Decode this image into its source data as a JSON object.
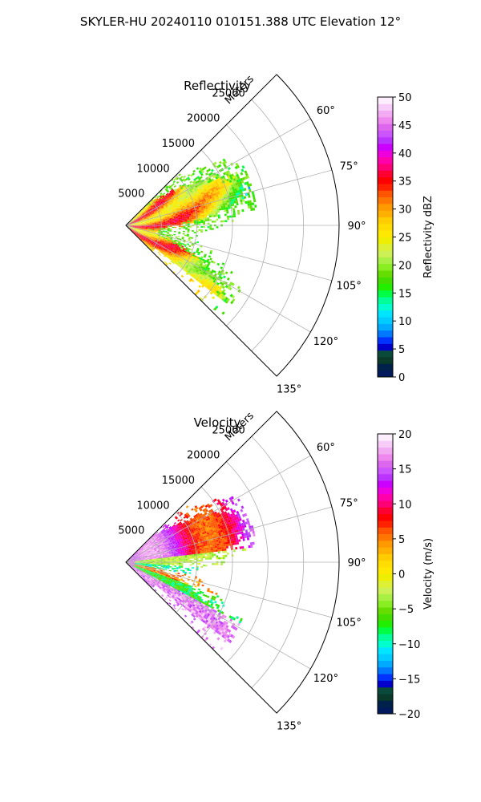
{
  "figure": {
    "suptitle": "SKYLER-HU  20240110  010151.388 UTC Elevation 12°"
  },
  "chart_data": [
    {
      "type": "heatmap",
      "subtype": "polar-sector (radar PPI)",
      "title": "Reflectivity",
      "range_label": "Meters",
      "range_ticks": [
        5000,
        10000,
        15000,
        20000,
        25000
      ],
      "range_max": 30000,
      "azimuth_ticks": [
        "60°",
        "75°",
        "90°",
        "105°",
        "120°",
        "135°"
      ],
      "azimuth_tick_values": [
        60,
        75,
        90,
        105,
        120,
        135
      ],
      "azimuth_range": [
        45,
        135
      ],
      "grid": true,
      "colorbar": {
        "label": "Reflectivity dBZ",
        "min": 0,
        "max": 50,
        "ticks": [
          0,
          5,
          10,
          15,
          20,
          25,
          30,
          35,
          40,
          45,
          50
        ],
        "tick_labels": [
          "0",
          "5",
          "10",
          "15",
          "20",
          "25",
          "30",
          "35",
          "40",
          "45",
          "50"
        ],
        "colors": [
          "#001a5c",
          "#00224a",
          "#0a3a2a",
          "#0a4a3a",
          "#0000cc",
          "#0033ff",
          "#0077ff",
          "#00aaff",
          "#00ccff",
          "#00e5ff",
          "#00ffcc",
          "#00ff99",
          "#00ff44",
          "#22ee00",
          "#44dd00",
          "#66dd00",
          "#88ee22",
          "#aaf044",
          "#ccf055",
          "#ddf033",
          "#eeee00",
          "#ffe800",
          "#ffdd00",
          "#ffcc00",
          "#ffb000",
          "#ff9900",
          "#ff7700",
          "#ff5500",
          "#ff2200",
          "#ff0000",
          "#ff0033",
          "#ff0077",
          "#ff00aa",
          "#ee00dd",
          "#cc00ff",
          "#bb33ff",
          "#cc55ff",
          "#dd66ee",
          "#ee88ee",
          "#f2aaf2",
          "#f8ccf8",
          "#fdeefd"
        ]
      }
    },
    {
      "type": "heatmap",
      "subtype": "polar-sector (radar PPI)",
      "title": "Velocity",
      "range_label": "Meters",
      "range_ticks": [
        5000,
        10000,
        15000,
        20000,
        25000
      ],
      "range_max": 30000,
      "azimuth_ticks": [
        "60°",
        "75°",
        "90°",
        "105°",
        "120°",
        "135°"
      ],
      "azimuth_tick_values": [
        60,
        75,
        90,
        105,
        120,
        135
      ],
      "azimuth_range": [
        45,
        135
      ],
      "grid": true,
      "colorbar": {
        "label": "Velocity (m/s)",
        "min": -20,
        "max": 20,
        "ticks": [
          -20,
          -15,
          -10,
          -5,
          0,
          5,
          10,
          15,
          20
        ],
        "tick_labels": [
          "−20",
          "−15",
          "−10",
          "−5",
          "0",
          "5",
          "10",
          "15",
          "20"
        ],
        "colors": [
          "#001a5c",
          "#00224a",
          "#0a3a2a",
          "#0a4a3a",
          "#0000cc",
          "#0033ff",
          "#0077ff",
          "#00aaff",
          "#00ccff",
          "#00e5ff",
          "#00ffcc",
          "#00ff99",
          "#00ff44",
          "#22ee00",
          "#44dd00",
          "#66dd00",
          "#88ee22",
          "#aaf044",
          "#ccf055",
          "#ddf033",
          "#eeee00",
          "#ffe800",
          "#ffdd00",
          "#ffcc00",
          "#ffb000",
          "#ff9900",
          "#ff7700",
          "#ff5500",
          "#ff2200",
          "#ff0000",
          "#ff0033",
          "#ff0077",
          "#ff00aa",
          "#ee00dd",
          "#cc00ff",
          "#bb33ff",
          "#cc55ff",
          "#dd66ee",
          "#ee88ee",
          "#f2aaf2",
          "#f8ccf8",
          "#fdeefd"
        ]
      }
    }
  ]
}
